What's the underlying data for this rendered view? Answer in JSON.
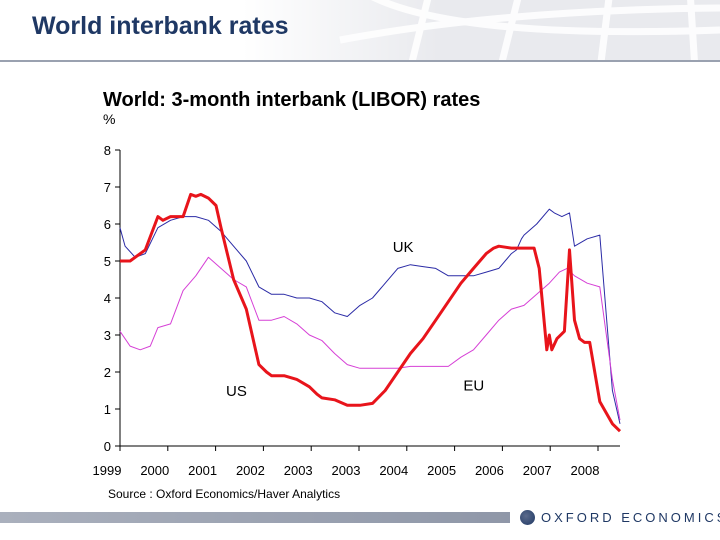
{
  "slide": {
    "title": "World interbank rates",
    "source": "Source : Oxford Economics/Haver Analytics",
    "logo_text": "OXFORD ECONOMICS"
  },
  "colors": {
    "title": "#1f3864",
    "us": "#e8141b",
    "uk": "#2b2ba6",
    "eu": "#d640d6"
  },
  "chart_data": {
    "type": "line",
    "title": "World: 3-month interbank (LIBOR) rates",
    "ylabel": "%",
    "xlabel": "",
    "ylim": [
      0,
      8
    ],
    "xlim": [
      1999,
      2008.9
    ],
    "yticks": [
      0,
      1,
      2,
      3,
      4,
      5,
      6,
      7,
      8
    ],
    "xticks": [
      "1999",
      "2000",
      "2001",
      "2002",
      "2003",
      "2003",
      "2004",
      "2005",
      "2006",
      "2007",
      "2008"
    ],
    "grid": false,
    "series": [
      {
        "name": "US",
        "color": "#e8141b",
        "x": [
          1999.0,
          1999.2,
          1999.5,
          1999.75,
          1999.85,
          2000.0,
          2000.25,
          2000.4,
          2000.5,
          2000.6,
          2000.75,
          2000.9,
          2001.0,
          2001.25,
          2001.5,
          2001.75,
          2001.9,
          2002.0,
          2002.25,
          2002.5,
          2002.75,
          2002.9,
          2003.0,
          2003.25,
          2003.5,
          2003.75,
          2004.0,
          2004.25,
          2004.5,
          2004.75,
          2005.0,
          2005.25,
          2005.5,
          2005.75,
          2006.0,
          2006.25,
          2006.4,
          2006.5,
          2006.75,
          2006.9,
          2007.0,
          2007.2,
          2007.3,
          2007.45,
          2007.5,
          2007.55,
          2007.65,
          2007.8,
          2007.9,
          2008.0,
          2008.1,
          2008.2,
          2008.3,
          2008.5,
          2008.75,
          2008.9
        ],
        "values": [
          5.0,
          5.0,
          5.3,
          6.2,
          6.1,
          6.2,
          6.2,
          6.8,
          6.75,
          6.8,
          6.7,
          6.5,
          5.9,
          4.5,
          3.7,
          2.2,
          2.0,
          1.9,
          1.9,
          1.8,
          1.6,
          1.4,
          1.3,
          1.25,
          1.1,
          1.1,
          1.15,
          1.5,
          2.0,
          2.5,
          2.9,
          3.4,
          3.9,
          4.4,
          4.8,
          5.2,
          5.35,
          5.4,
          5.35,
          5.35,
          5.35,
          5.35,
          4.8,
          2.6,
          3.0,
          2.6,
          2.9,
          3.1,
          5.3,
          3.4,
          2.9,
          2.8,
          2.8,
          1.2,
          0.6,
          0.4
        ]
      },
      {
        "name": "UK",
        "color": "#2b2ba6",
        "x": [
          1999.0,
          1999.1,
          1999.3,
          1999.5,
          1999.75,
          2000.0,
          2000.25,
          2000.5,
          2000.75,
          2001.0,
          2001.25,
          2001.5,
          2001.75,
          2002.0,
          2002.25,
          2002.5,
          2002.75,
          2003.0,
          2003.25,
          2003.5,
          2003.75,
          2004.0,
          2004.25,
          2004.5,
          2004.75,
          2005.0,
          2005.25,
          2005.5,
          2005.75,
          2006.0,
          2006.25,
          2006.5,
          2006.75,
          2006.85,
          2006.95,
          2007.0,
          2007.25,
          2007.5,
          2007.6,
          2007.75,
          2007.9,
          2008.0,
          2008.25,
          2008.5,
          2008.75,
          2008.9
        ],
        "values": [
          5.9,
          5.4,
          5.1,
          5.2,
          5.9,
          6.1,
          6.2,
          6.2,
          6.1,
          5.8,
          5.4,
          5.0,
          4.3,
          4.1,
          4.1,
          4.0,
          4.0,
          3.9,
          3.6,
          3.5,
          3.8,
          4.0,
          4.4,
          4.8,
          4.9,
          4.85,
          4.8,
          4.6,
          4.6,
          4.6,
          4.7,
          4.8,
          5.2,
          5.3,
          5.6,
          5.7,
          6.0,
          6.4,
          6.3,
          6.2,
          6.3,
          5.4,
          5.6,
          5.7,
          1.5,
          0.6
        ]
      },
      {
        "name": "EU",
        "color": "#d640d6",
        "x": [
          1999.0,
          1999.2,
          1999.4,
          1999.6,
          1999.75,
          2000.0,
          2000.25,
          2000.5,
          2000.75,
          2001.0,
          2001.25,
          2001.5,
          2001.75,
          2002.0,
          2002.25,
          2002.5,
          2002.75,
          2003.0,
          2003.25,
          2003.5,
          2003.75,
          2004.0,
          2004.25,
          2004.5,
          2004.75,
          2005.0,
          2005.25,
          2005.5,
          2005.75,
          2006.0,
          2006.25,
          2006.5,
          2006.75,
          2007.0,
          2007.25,
          2007.5,
          2007.7,
          2007.85,
          2008.0,
          2008.25,
          2008.5,
          2008.75,
          2008.9
        ],
        "values": [
          3.1,
          2.7,
          2.6,
          2.7,
          3.2,
          3.3,
          4.2,
          4.6,
          5.1,
          4.8,
          4.5,
          4.3,
          3.4,
          3.4,
          3.5,
          3.3,
          3.0,
          2.85,
          2.5,
          2.2,
          2.1,
          2.1,
          2.1,
          2.1,
          2.15,
          2.15,
          2.15,
          2.15,
          2.4,
          2.6,
          3.0,
          3.4,
          3.7,
          3.8,
          4.1,
          4.4,
          4.7,
          4.8,
          4.6,
          4.4,
          4.3,
          1.8,
          0.7
        ]
      }
    ],
    "labels": [
      {
        "text": "UK",
        "x": 2004.4,
        "y": 5.25
      },
      {
        "text": "US",
        "x": 2001.1,
        "y": 1.35
      },
      {
        "text": "EU",
        "x": 2005.8,
        "y": 1.5
      }
    ]
  }
}
